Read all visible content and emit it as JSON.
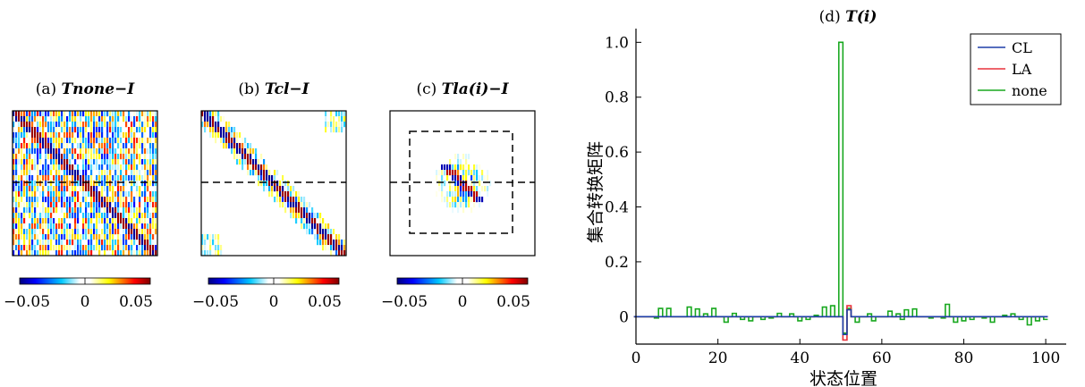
{
  "chart_data": [
    {
      "type": "heatmap",
      "title_prefix": "(a) ",
      "title_italic": "Tnone−I",
      "colorbar": {
        "range": [
          -0.05,
          0.05
        ],
        "ticks": [
          "−0.05",
          "0",
          "0.05"
        ]
      },
      "pattern": "dense",
      "dashed_line": "horizontal"
    },
    {
      "type": "heatmap",
      "title_prefix": "(b) ",
      "title_italic": "Tcl−I",
      "colorbar": {
        "range": [
          -0.05,
          0.05
        ],
        "ticks": [
          "−0.05",
          "0",
          "0.05"
        ]
      },
      "pattern": "banded",
      "dashed_line": "horizontal"
    },
    {
      "type": "heatmap",
      "title_prefix": "(c) ",
      "title_italic": "Tla(i)−I",
      "colorbar": {
        "range": [
          -0.05,
          0.05
        ],
        "ticks": [
          "−0.05",
          "0",
          "0.05"
        ]
      },
      "pattern": "local",
      "dashed_line": "horizontal",
      "dashed_box": true
    },
    {
      "type": "line",
      "title_prefix": "(d) ",
      "title_italic": "T(i)",
      "xlabel": "状态位置",
      "ylabel": "集合转换矩阵",
      "xlim": [
        0,
        105
      ],
      "ylim": [
        -0.1,
        1.05
      ],
      "xticks": [
        0,
        20,
        40,
        60,
        80,
        100
      ],
      "yticks": [
        0,
        0.2,
        0.4,
        0.6,
        0.8,
        1.0
      ],
      "ytick_labels": [
        "0",
        "0.2",
        "0.4",
        "0.6",
        "0.8",
        "1.0"
      ],
      "legend": {
        "position": "top-right",
        "entries": [
          "CL",
          "LA",
          "none"
        ]
      },
      "colors": {
        "CL": "#1f3fa8",
        "LA": "#e8323c",
        "none": "#18a81f"
      },
      "x": [
        0,
        1,
        2,
        3,
        4,
        5,
        6,
        7,
        8,
        9,
        10,
        11,
        12,
        13,
        14,
        15,
        16,
        17,
        18,
        19,
        20,
        21,
        22,
        23,
        24,
        25,
        26,
        27,
        28,
        29,
        30,
        31,
        32,
        33,
        34,
        35,
        36,
        37,
        38,
        39,
        40,
        41,
        42,
        43,
        44,
        45,
        46,
        47,
        48,
        49,
        50,
        51,
        52,
        53,
        54,
        55,
        56,
        57,
        58,
        59,
        60,
        61,
        62,
        63,
        64,
        65,
        66,
        67,
        68,
        69,
        70,
        71,
        72,
        73,
        74,
        75,
        76,
        77,
        78,
        79,
        80,
        81,
        82,
        83,
        84,
        85,
        86,
        87,
        88,
        89,
        90,
        91,
        92,
        93,
        94,
        95,
        96,
        97,
        98,
        99,
        100
      ],
      "series": [
        {
          "name": "none",
          "values": [
            0,
            0,
            0,
            0,
            0,
            -0.005,
            0.03,
            0,
            0.03,
            0,
            0,
            0,
            0,
            0.035,
            0,
            0.028,
            0,
            0.01,
            0,
            0.03,
            0,
            0,
            -0.02,
            0,
            0.012,
            0,
            -0.01,
            0,
            -0.015,
            0,
            0,
            -0.01,
            0,
            -0.005,
            0,
            0.012,
            0,
            0,
            0.01,
            0,
            -0.015,
            0,
            -0.01,
            0,
            0.005,
            0,
            0.035,
            0,
            0.04,
            0,
            1.0,
            -0.06,
            0.03,
            0,
            -0.02,
            0,
            0,
            0.01,
            -0.015,
            0,
            0,
            0,
            0.02,
            0,
            0.01,
            -0.01,
            0.025,
            0,
            0.028,
            0,
            0,
            0,
            -0.005,
            0,
            0,
            -0.005,
            0.045,
            0,
            -0.02,
            0,
            -0.015,
            0,
            -0.01,
            0,
            0,
            -0.005,
            0,
            -0.02,
            0,
            0,
            0.005,
            0,
            0.01,
            0,
            -0.01,
            0,
            -0.03,
            0,
            -0.015,
            0,
            -0.01
          ]
        },
        {
          "name": "LA",
          "values": [
            0,
            0,
            0,
            0,
            0,
            0,
            0,
            0,
            0,
            0,
            0,
            0,
            0,
            0,
            0,
            0,
            0,
            0,
            0,
            0,
            0,
            0,
            0,
            0,
            0,
            0,
            0,
            0,
            0,
            0,
            0,
            0,
            0,
            0,
            0,
            0,
            0,
            0,
            0,
            0,
            0,
            0,
            0,
            0,
            0,
            0,
            0,
            0,
            0,
            0,
            0,
            -0.085,
            0.04,
            0,
            0,
            0,
            0,
            0,
            0,
            0,
            0,
            0,
            0,
            0,
            0,
            0,
            0,
            0,
            0,
            0,
            0,
            0,
            0,
            0,
            0,
            0,
            0,
            0,
            0,
            0,
            0,
            0,
            0,
            0,
            0,
            0,
            0,
            0,
            0,
            0,
            0,
            0,
            0,
            0,
            0,
            0,
            0,
            0,
            0,
            0,
            0
          ]
        },
        {
          "name": "CL",
          "values": [
            0,
            0,
            0,
            0,
            0,
            0,
            0,
            0,
            0,
            0,
            0,
            0,
            0,
            0,
            0,
            0,
            0,
            0,
            0,
            0,
            0,
            0,
            0,
            0,
            0,
            0,
            0,
            0,
            0,
            0,
            0,
            0,
            0,
            0,
            0,
            0,
            0,
            0,
            0,
            0,
            0,
            0,
            0,
            0,
            0,
            0,
            0,
            0,
            0,
            0,
            0,
            -0.065,
            0.025,
            0,
            0,
            0,
            0,
            0,
            0,
            0,
            0,
            0,
            0,
            0,
            0,
            0,
            0,
            0,
            0,
            0,
            0,
            0,
            0,
            0,
            0,
            0,
            0,
            0,
            0,
            0,
            0,
            0,
            0,
            0,
            0,
            0,
            0,
            0,
            0,
            0,
            0,
            0,
            0,
            0,
            0,
            0,
            0,
            0,
            0,
            0,
            0
          ]
        }
      ]
    }
  ]
}
